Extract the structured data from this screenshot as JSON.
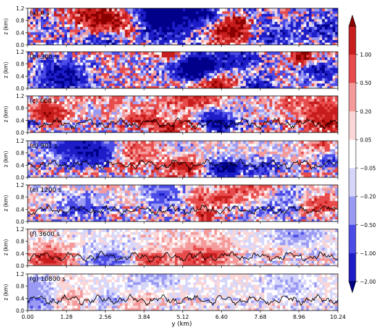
{
  "chart_data": {
    "type": "heatmap",
    "xlabel": "y (km)",
    "ylabel": "z (km)",
    "xlim": [
      0,
      10.24
    ],
    "ylim": [
      0,
      1.2
    ],
    "x_ticks": [
      "0.00",
      "1.28",
      "2.56",
      "3.84",
      "5.12",
      "6.40",
      "7.68",
      "8.96",
      "10.24"
    ],
    "x_tick_values": [
      0,
      1.28,
      2.56,
      3.84,
      5.12,
      6.4,
      7.68,
      8.96,
      10.24
    ],
    "y_ticks": [
      "0.0",
      "0.4",
      "0.8",
      "1.2"
    ],
    "y_tick_values": [
      0,
      0.4,
      0.8,
      1.2
    ],
    "colormap": "seismic (blue-white-red), symmetric log-like levels",
    "colorbar": {
      "levels": [
        2.0,
        1.0,
        0.5,
        0.2,
        0.05,
        -0.05,
        -0.2,
        -0.5,
        -1.0,
        -2.0
      ],
      "labels": [
        "1.00",
        "0.50",
        "0.20",
        "0.05",
        "−0.05",
        "−0.20",
        "−0.50",
        "−1.00",
        "−2.00"
      ],
      "colors": [
        "#8b0000",
        "#c81d1d",
        "#e74b4b",
        "#f49a9a",
        "#fbd6d6",
        "#ffffff",
        "#d6d6fb",
        "#9a9af4",
        "#4b4be7",
        "#1d1dc8",
        "#00008b"
      ]
    },
    "panels": [
      {
        "label": "(a) 0 s",
        "amplitude": 1.25,
        "contour_height_km": null
      },
      {
        "label": "(b) 300 s",
        "amplitude": 1.05,
        "contour_height_km": null
      },
      {
        "label": "(c) 600 s",
        "amplitude": 0.95,
        "contour_height_km": 0.3
      },
      {
        "label": "(d) 901 s",
        "amplitude": 0.8,
        "contour_height_km": 0.42
      },
      {
        "label": "(e) 1200 s",
        "amplitude": 0.7,
        "contour_height_km": 0.38
      },
      {
        "label": "(f) 3600 s",
        "amplitude": 0.35,
        "contour_height_km": 0.3
      },
      {
        "label": "(g) 10800 s",
        "amplitude": 0.25,
        "contour_height_km": 0.35
      }
    ]
  }
}
